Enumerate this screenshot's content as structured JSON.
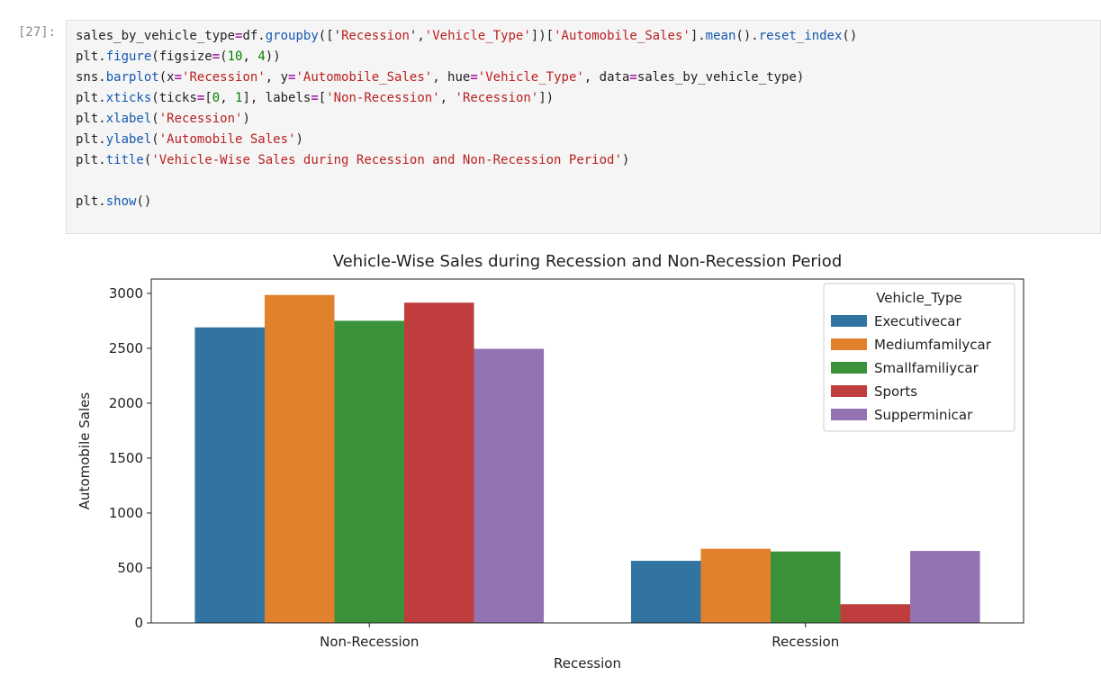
{
  "cell": {
    "prompt": "[27]:",
    "code_lines": [
      [
        {
          "t": "sales_by_vehicle_type",
          "c": ""
        },
        {
          "t": "=",
          "c": "kw"
        },
        {
          "t": "df.",
          "c": ""
        },
        {
          "t": "groupby",
          "c": "fn"
        },
        {
          "t": "(['",
          "c": ""
        },
        {
          "t": "Recession",
          "c": "str"
        },
        {
          "t": "',",
          "c": ""
        },
        {
          "t": "'Vehicle_Type'",
          "c": "str"
        },
        {
          "t": "])[",
          "c": ""
        },
        {
          "t": "'Automobile_Sales'",
          "c": "str"
        },
        {
          "t": "].",
          "c": ""
        },
        {
          "t": "mean",
          "c": "fn"
        },
        {
          "t": "().",
          "c": ""
        },
        {
          "t": "reset_index",
          "c": "fn"
        },
        {
          "t": "()",
          "c": ""
        }
      ],
      [
        {
          "t": "plt.",
          "c": ""
        },
        {
          "t": "figure",
          "c": "fn"
        },
        {
          "t": "(figsize",
          "c": ""
        },
        {
          "t": "=",
          "c": "kw"
        },
        {
          "t": "(",
          "c": ""
        },
        {
          "t": "10",
          "c": "num"
        },
        {
          "t": ", ",
          "c": ""
        },
        {
          "t": "4",
          "c": "num"
        },
        {
          "t": "))",
          "c": ""
        }
      ],
      [
        {
          "t": "sns.",
          "c": ""
        },
        {
          "t": "barplot",
          "c": "fn"
        },
        {
          "t": "(x",
          "c": ""
        },
        {
          "t": "=",
          "c": "kw"
        },
        {
          "t": "'Recession'",
          "c": "str"
        },
        {
          "t": ", y",
          "c": ""
        },
        {
          "t": "=",
          "c": "kw"
        },
        {
          "t": "'Automobile_Sales'",
          "c": "str"
        },
        {
          "t": ", hue",
          "c": ""
        },
        {
          "t": "=",
          "c": "kw"
        },
        {
          "t": "'Vehicle_Type'",
          "c": "str"
        },
        {
          "t": ", data",
          "c": ""
        },
        {
          "t": "=",
          "c": "kw"
        },
        {
          "t": "sales_by_vehicle_type)",
          "c": ""
        }
      ],
      [
        {
          "t": "plt.",
          "c": ""
        },
        {
          "t": "xticks",
          "c": "fn"
        },
        {
          "t": "(ticks",
          "c": ""
        },
        {
          "t": "=",
          "c": "kw"
        },
        {
          "t": "[",
          "c": ""
        },
        {
          "t": "0",
          "c": "num"
        },
        {
          "t": ", ",
          "c": ""
        },
        {
          "t": "1",
          "c": "num"
        },
        {
          "t": "], labels",
          "c": ""
        },
        {
          "t": "=",
          "c": "kw"
        },
        {
          "t": "[",
          "c": ""
        },
        {
          "t": "'Non-Recession'",
          "c": "str"
        },
        {
          "t": ", ",
          "c": ""
        },
        {
          "t": "'Recession'",
          "c": "str"
        },
        {
          "t": "])",
          "c": ""
        }
      ],
      [
        {
          "t": "plt.",
          "c": ""
        },
        {
          "t": "xlabel",
          "c": "fn"
        },
        {
          "t": "(",
          "c": ""
        },
        {
          "t": "'Recession'",
          "c": "str"
        },
        {
          "t": ")",
          "c": ""
        }
      ],
      [
        {
          "t": "plt.",
          "c": ""
        },
        {
          "t": "ylabel",
          "c": "fn"
        },
        {
          "t": "(",
          "c": ""
        },
        {
          "t": "'Automobile Sales'",
          "c": "str"
        },
        {
          "t": ")",
          "c": ""
        }
      ],
      [
        {
          "t": "plt.",
          "c": ""
        },
        {
          "t": "title",
          "c": "fn"
        },
        {
          "t": "(",
          "c": ""
        },
        {
          "t": "'Vehicle-Wise Sales during Recession and Non-Recession Period'",
          "c": "str"
        },
        {
          "t": ")",
          "c": ""
        }
      ],
      [],
      [
        {
          "t": "plt.",
          "c": ""
        },
        {
          "t": "show",
          "c": "fn"
        },
        {
          "t": "()",
          "c": ""
        }
      ]
    ]
  },
  "colors": {
    "Executivecar": "#3274a1",
    "Mediumfamilycar": "#e1812c",
    "Smallfamiliycar": "#3a923a",
    "Sports": "#c03d3e",
    "Supperminicar": "#9372b2"
  },
  "chart_data": {
    "type": "bar",
    "title": "Vehicle-Wise Sales during Recession and Non-Recession Period",
    "xlabel": "Recession",
    "ylabel": "Automobile Sales",
    "categories": [
      "Non-Recession",
      "Recession"
    ],
    "ylim": [
      0,
      3130
    ],
    "yticks": [
      0,
      500,
      1000,
      1500,
      2000,
      2500,
      3000
    ],
    "legend_title": "Vehicle_Type",
    "legend_position": "top-right",
    "grid": false,
    "series": [
      {
        "name": "Executivecar",
        "values": [
          2690,
          565
        ]
      },
      {
        "name": "Mediumfamilycar",
        "values": [
          2985,
          675
        ]
      },
      {
        "name": "Smallfamiliycar",
        "values": [
          2750,
          650
        ]
      },
      {
        "name": "Sports",
        "values": [
          2915,
          170
        ]
      },
      {
        "name": "Supperminicar",
        "values": [
          2495,
          655
        ]
      }
    ]
  }
}
